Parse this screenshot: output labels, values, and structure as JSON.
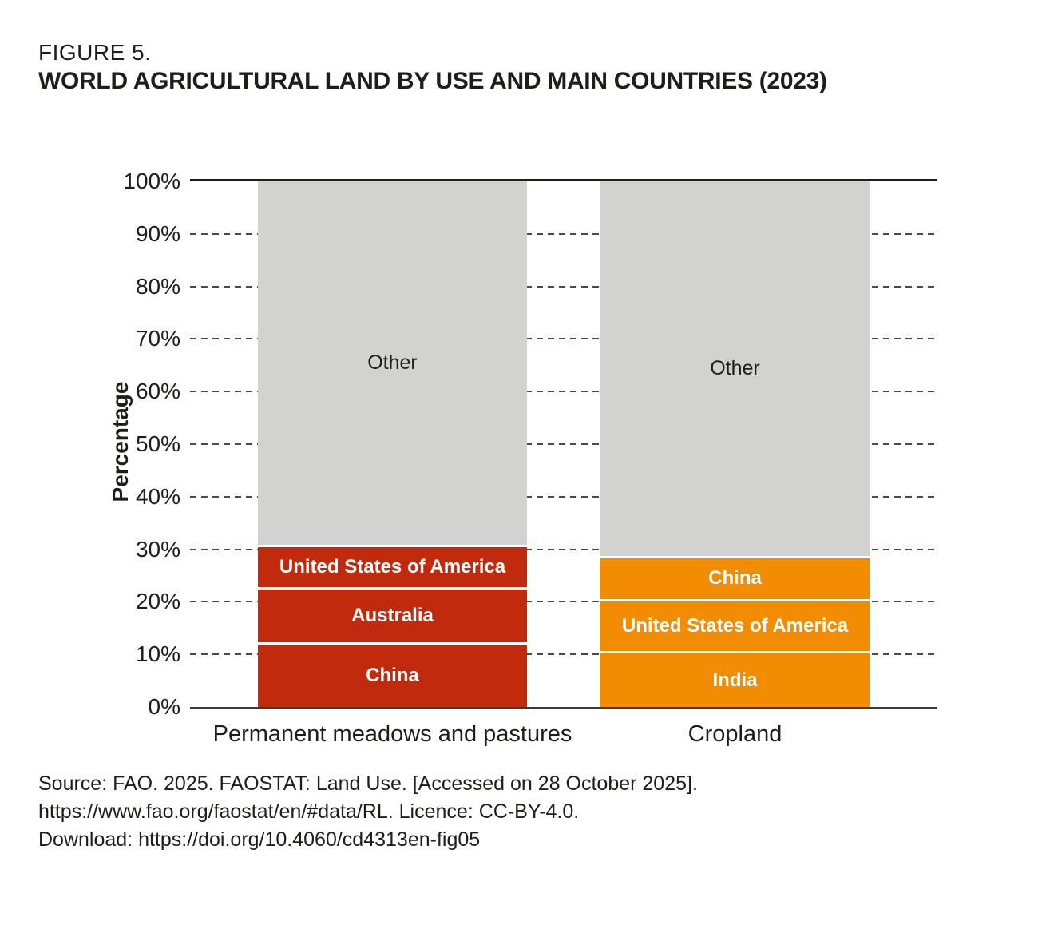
{
  "figure": {
    "label": "FIGURE 5.",
    "title": "WORLD AGRICULTURAL LAND BY USE AND MAIN COUNTRIES (2023)"
  },
  "chart_data": {
    "type": "bar",
    "subtype": "100-percent-stacked-column",
    "title": "WORLD AGRICULTURAL LAND BY USE AND MAIN COUNTRIES (2023)",
    "xlabel": "",
    "ylabel": "Percentage",
    "ylim": [
      0,
      100
    ],
    "yticks": [
      0,
      10,
      20,
      30,
      40,
      50,
      60,
      70,
      80,
      90,
      100
    ],
    "ytick_suffix": "%",
    "grid": "horizontal-dashed",
    "legend": "none",
    "categories": [
      "Permanent meadows and pastures",
      "Cropland"
    ],
    "colors": {
      "meadows_pastures": "#c22a0e",
      "cropland": "#f28c00",
      "other": "#d2d2d0",
      "segment_text": "#ffffff",
      "axis_text": "#1d1d1b"
    },
    "bars": [
      {
        "category": "Permanent meadows and pastures",
        "color": "#c22a0e",
        "segments": [
          {
            "label": "China",
            "value": 12.3
          },
          {
            "label": "Australia",
            "value": 10.5
          },
          {
            "label": "United States of America",
            "value": 8.0
          },
          {
            "label": "Other",
            "value": 69.2,
            "color": "#d2d2d0",
            "text_color": "#1d1d1b",
            "bold": false
          }
        ]
      },
      {
        "category": "Cropland",
        "color": "#f28c00",
        "segments": [
          {
            "label": "India",
            "value": 10.6
          },
          {
            "label": "United States of America",
            "value": 9.9
          },
          {
            "label": "China",
            "value": 8.3
          },
          {
            "label": "Other",
            "value": 71.2,
            "color": "#d2d2d0",
            "text_color": "#1d1d1b",
            "bold": false
          }
        ]
      }
    ]
  },
  "source": {
    "line1": "Source: FAO. 2025. FAOSTAT: Land Use. [Accessed on 28 October 2025].",
    "line2": "https://www.fao.org/faostat/en/#data/RL. Licence: CC-BY-4.0.",
    "line3": "Download: https://doi.org/10.4060/cd4313en-fig05"
  }
}
